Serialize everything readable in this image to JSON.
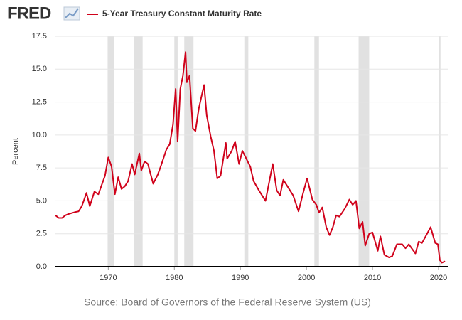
{
  "logo": "FRED",
  "chart_data": {
    "type": "line",
    "ylabel": "Percent",
    "source": "Source: Board of Governors of the Federal Reserve System (US)",
    "xlim": [
      1962,
      2021.4
    ],
    "xticks": [
      1970,
      1980,
      1990,
      2000,
      2010,
      2020
    ],
    "ylim": [
      0,
      17.5
    ],
    "yticks": [
      {
        "value": 0,
        "label": "0.0"
      },
      {
        "value": 2.5,
        "label": "2.5"
      },
      {
        "value": 5,
        "label": "5.0"
      },
      {
        "value": 7.5,
        "label": "7.5"
      },
      {
        "value": 10,
        "label": "10.0"
      },
      {
        "value": 12.5,
        "label": "12.5"
      },
      {
        "value": 15,
        "label": "15.0"
      },
      {
        "value": 17.5,
        "label": "17.5"
      }
    ],
    "grid": true,
    "recessions": [
      [
        1969.9,
        1970.9
      ],
      [
        1973.9,
        1975.2
      ],
      [
        1980.0,
        1980.5
      ],
      [
        1981.5,
        1982.9
      ],
      [
        1990.6,
        1991.2
      ],
      [
        2001.2,
        2001.9
      ],
      [
        2007.9,
        2009.5
      ],
      [
        2020.1,
        2020.3
      ]
    ],
    "recession_color": "#e1e1e1",
    "x": [
      1962,
      1962.5,
      1963,
      1963.5,
      1964,
      1965,
      1965.5,
      1966,
      1966.7,
      1967.2,
      1967.9,
      1968.5,
      1969,
      1969.5,
      1970,
      1970.5,
      1971,
      1971.5,
      1972,
      1972.5,
      1973,
      1973.6,
      1974,
      1974.7,
      1975,
      1975.5,
      1976,
      1976.8,
      1977,
      1977.5,
      1978,
      1978.8,
      1979.3,
      1979.8,
      1980.2,
      1980.5,
      1980.9,
      1981.3,
      1981.7,
      1981.9,
      1982.3,
      1982.8,
      1983.2,
      1983.7,
      1984.5,
      1984.9,
      1985.5,
      1986,
      1986.5,
      1987,
      1987.8,
      1988,
      1988.7,
      1989.2,
      1989.8,
      1990.3,
      1990.8,
      1991.5,
      1992,
      1992.8,
      1993.8,
      1994.9,
      1995.5,
      1996,
      1996.5,
      1997,
      1998,
      1998.8,
      1999.5,
      2000.1,
      2000.9,
      2001.5,
      2001.9,
      2002.4,
      2003,
      2003.5,
      2004,
      2004.5,
      2005,
      2005.8,
      2006.5,
      2007,
      2007.5,
      2008,
      2008.5,
      2008.9,
      2009.5,
      2010,
      2010.8,
      2011.2,
      2011.8,
      2012.5,
      2013,
      2013.7,
      2014.5,
      2015,
      2015.5,
      2016.5,
      2017,
      2017.5,
      2018.8,
      2019.5,
      2019.9,
      2020.2,
      2020.5,
      2021
    ],
    "series": [
      {
        "name": "5-Year Treasury Constant Maturity Rate",
        "color": "#d0021b",
        "values": [
          3.9,
          3.7,
          3.7,
          3.9,
          4.0,
          4.15,
          4.2,
          4.6,
          5.6,
          4.6,
          5.7,
          5.5,
          6.2,
          6.9,
          8.3,
          7.6,
          5.5,
          6.8,
          5.9,
          6.1,
          6.5,
          7.8,
          7.0,
          8.6,
          7.3,
          8.0,
          7.8,
          6.3,
          6.5,
          7.0,
          7.7,
          8.9,
          9.3,
          10.8,
          13.5,
          9.5,
          13.5,
          14.5,
          16.3,
          14.0,
          14.5,
          10.5,
          10.3,
          12.0,
          13.8,
          11.5,
          9.9,
          8.8,
          6.7,
          6.9,
          9.4,
          8.2,
          8.8,
          9.5,
          7.8,
          8.8,
          8.3,
          7.6,
          6.5,
          5.8,
          5.0,
          7.8,
          5.8,
          5.4,
          6.6,
          6.2,
          5.4,
          4.2,
          5.6,
          6.7,
          5.1,
          4.7,
          4.1,
          4.5,
          3.0,
          2.4,
          3.0,
          3.9,
          3.8,
          4.4,
          5.1,
          4.7,
          5.0,
          2.9,
          3.4,
          1.6,
          2.5,
          2.6,
          1.2,
          2.3,
          0.9,
          0.7,
          0.8,
          1.7,
          1.7,
          1.4,
          1.7,
          1.0,
          1.9,
          1.8,
          3.0,
          1.8,
          1.7,
          0.5,
          0.3,
          0.4
        ]
      }
    ]
  }
}
